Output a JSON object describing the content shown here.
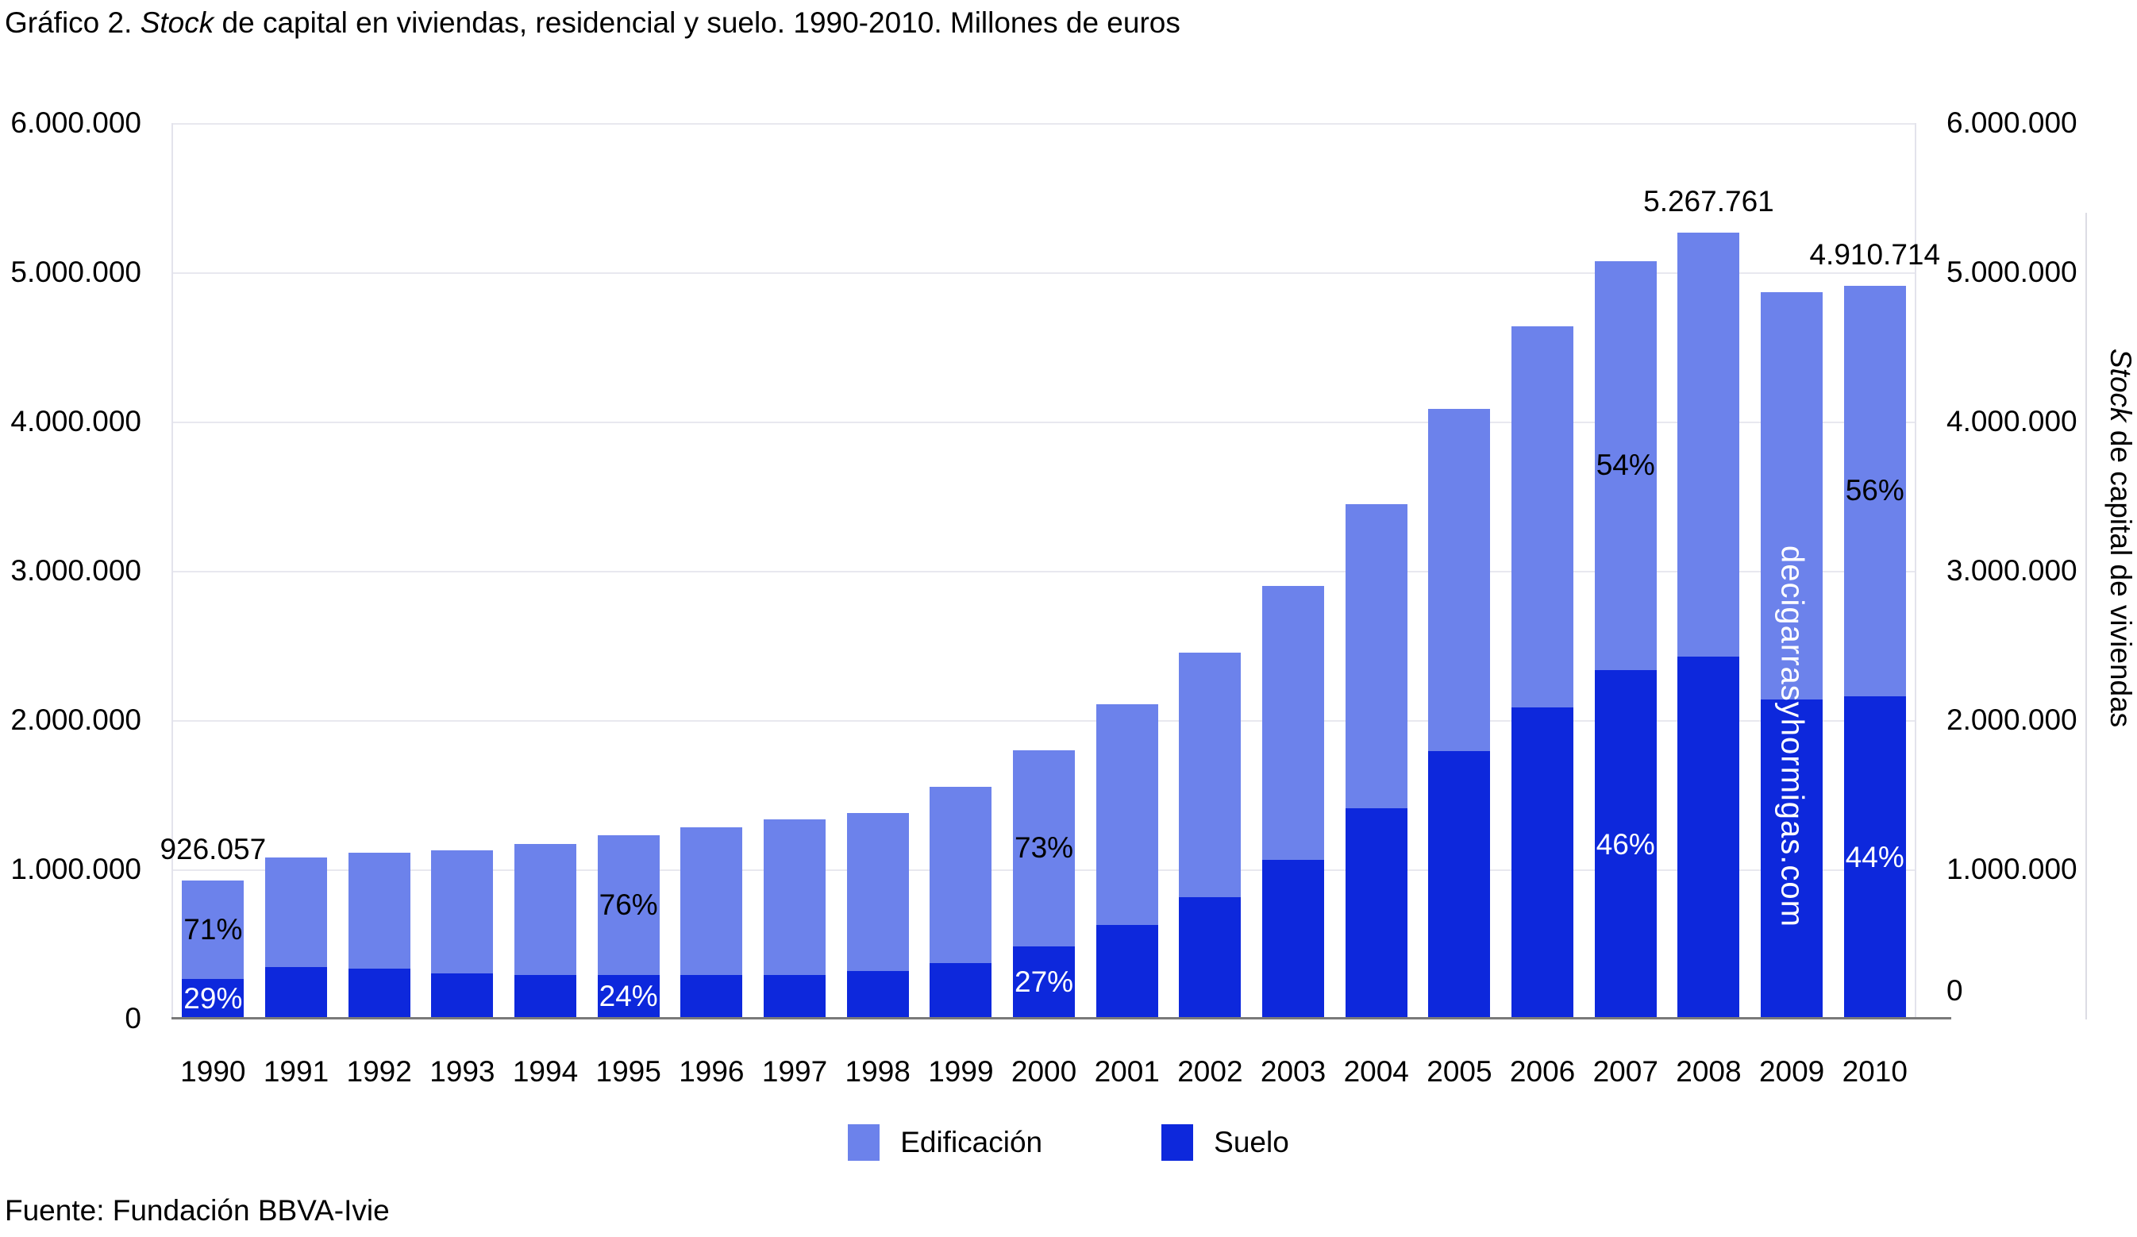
{
  "title": {
    "prefix": "Gráfico 2. ",
    "italic": "Stock",
    "suffix": " de capital en viviendas, residencial y suelo. 1990-2010. Millones de euros"
  },
  "source": "Fuente: Fundación BBVA-Ivie",
  "watermark": "decigarrasyhormigas.com",
  "legend": [
    {
      "label": "Edificación",
      "color": "#6C82EB"
    },
    {
      "label": "Suelo",
      "color": "#0D28DC"
    }
  ],
  "y_axis_left": {
    "labels": [
      "6.000.000",
      "5.000.000",
      "4.000.000",
      "3.000.000",
      "2.000.000",
      "1.000.000",
      "0"
    ]
  },
  "y_axis_right": {
    "labels": [
      "6.000.000",
      "5.000.000",
      "4.000.000",
      "3.000.000",
      "2.000.000",
      "1.000.000",
      "0"
    ],
    "title_italic": "Stock",
    "title_rest": " de capital de viviendas"
  },
  "chart_data": {
    "type": "bar",
    "stacked": true,
    "title": "Stock de capital en viviendas, residencial y suelo. 1990-2010. Millones de euros",
    "xlabel": "",
    "ylabel": "Stock de capital de viviendas",
    "ylim": [
      0,
      6000000
    ],
    "ytick_step": 1000000,
    "grid": true,
    "legend_position": "bottom",
    "categories": [
      1990,
      1991,
      1992,
      1993,
      1994,
      1995,
      1996,
      1997,
      1998,
      1999,
      2000,
      2001,
      2002,
      2003,
      2004,
      2005,
      2006,
      2007,
      2008,
      2009,
      2010
    ],
    "series": [
      {
        "name": "Suelo",
        "color": "#0D28DC",
        "values": [
          268557,
          345000,
          333000,
          305000,
          293000,
          295000,
          294000,
          294000,
          317000,
          375000,
          486000,
          630000,
          812000,
          1065000,
          1410000,
          1795000,
          2085000,
          2335000,
          2425000,
          2140000,
          2160714
        ]
      },
      {
        "name": "Edificación",
        "color": "#6C82EB",
        "values": [
          657500,
          735000,
          777000,
          825000,
          877000,
          935000,
          986000,
          1041000,
          1063000,
          1180000,
          1314000,
          1475000,
          1638000,
          1835000,
          2035000,
          2290000,
          2555000,
          2740000,
          2842761,
          2725000,
          2750000
        ]
      }
    ],
    "totals": [
      926057,
      1080000,
      1110000,
      1130000,
      1170000,
      1230000,
      1280000,
      1335000,
      1380000,
      1555000,
      1800000,
      2105000,
      2450000,
      2900000,
      3445000,
      4085000,
      4640000,
      5075000,
      5267761,
      4865000,
      4910714
    ],
    "annotations": {
      "totals": [
        {
          "year": 1990,
          "label": "926.057"
        },
        {
          "year": 2008,
          "label": "5.267.761"
        },
        {
          "year": 2010,
          "label": "4.910.714"
        }
      ],
      "percents": [
        {
          "year": 1990,
          "edificacion": "71%",
          "suelo": "29%"
        },
        {
          "year": 1995,
          "edificacion": "76%",
          "suelo": "24%"
        },
        {
          "year": 2000,
          "edificacion": "73%",
          "suelo": "27%"
        },
        {
          "year": 2007,
          "edificacion": "54%",
          "suelo": "46%"
        },
        {
          "year": 2010,
          "edificacion": "56%",
          "suelo": "44%"
        }
      ],
      "watermark_year": 2009
    }
  }
}
